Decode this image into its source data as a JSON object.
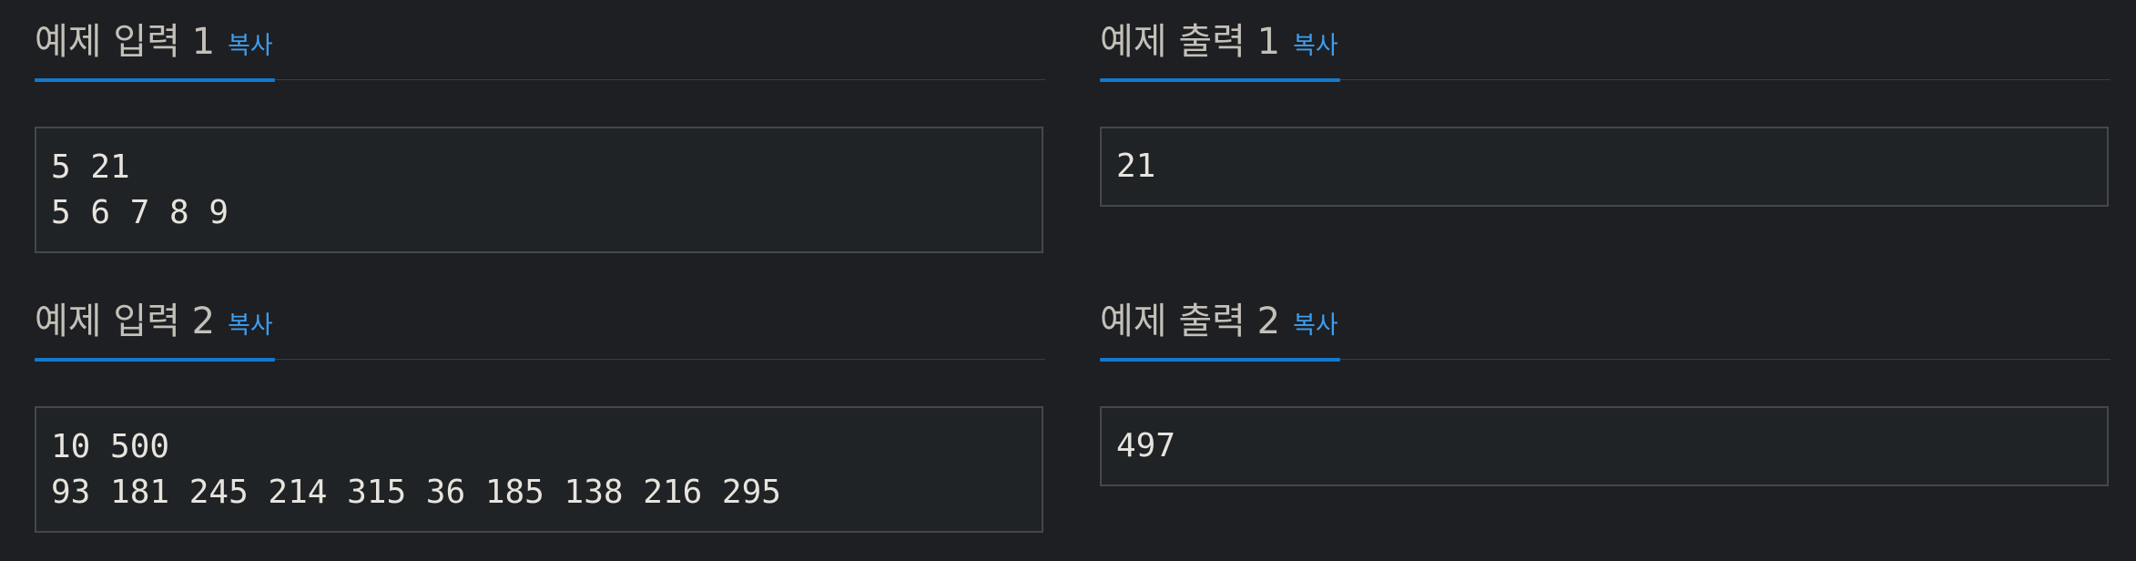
{
  "copy_label": "복사",
  "examples": [
    {
      "input": {
        "title": "예제 입력 1",
        "value": "5 21\n5 6 7 8 9"
      },
      "output": {
        "title": "예제 출력 1",
        "value": "21"
      }
    },
    {
      "input": {
        "title": "예제 입력 2",
        "value": "10 500\n93 181 245 214 315 36 185 138 216 295"
      },
      "output": {
        "title": "예제 출력 2",
        "value": "497"
      }
    }
  ],
  "colors": {
    "background": "#1d1f22",
    "accent": "#1479cd",
    "copy_link": "#3e9ef0"
  }
}
